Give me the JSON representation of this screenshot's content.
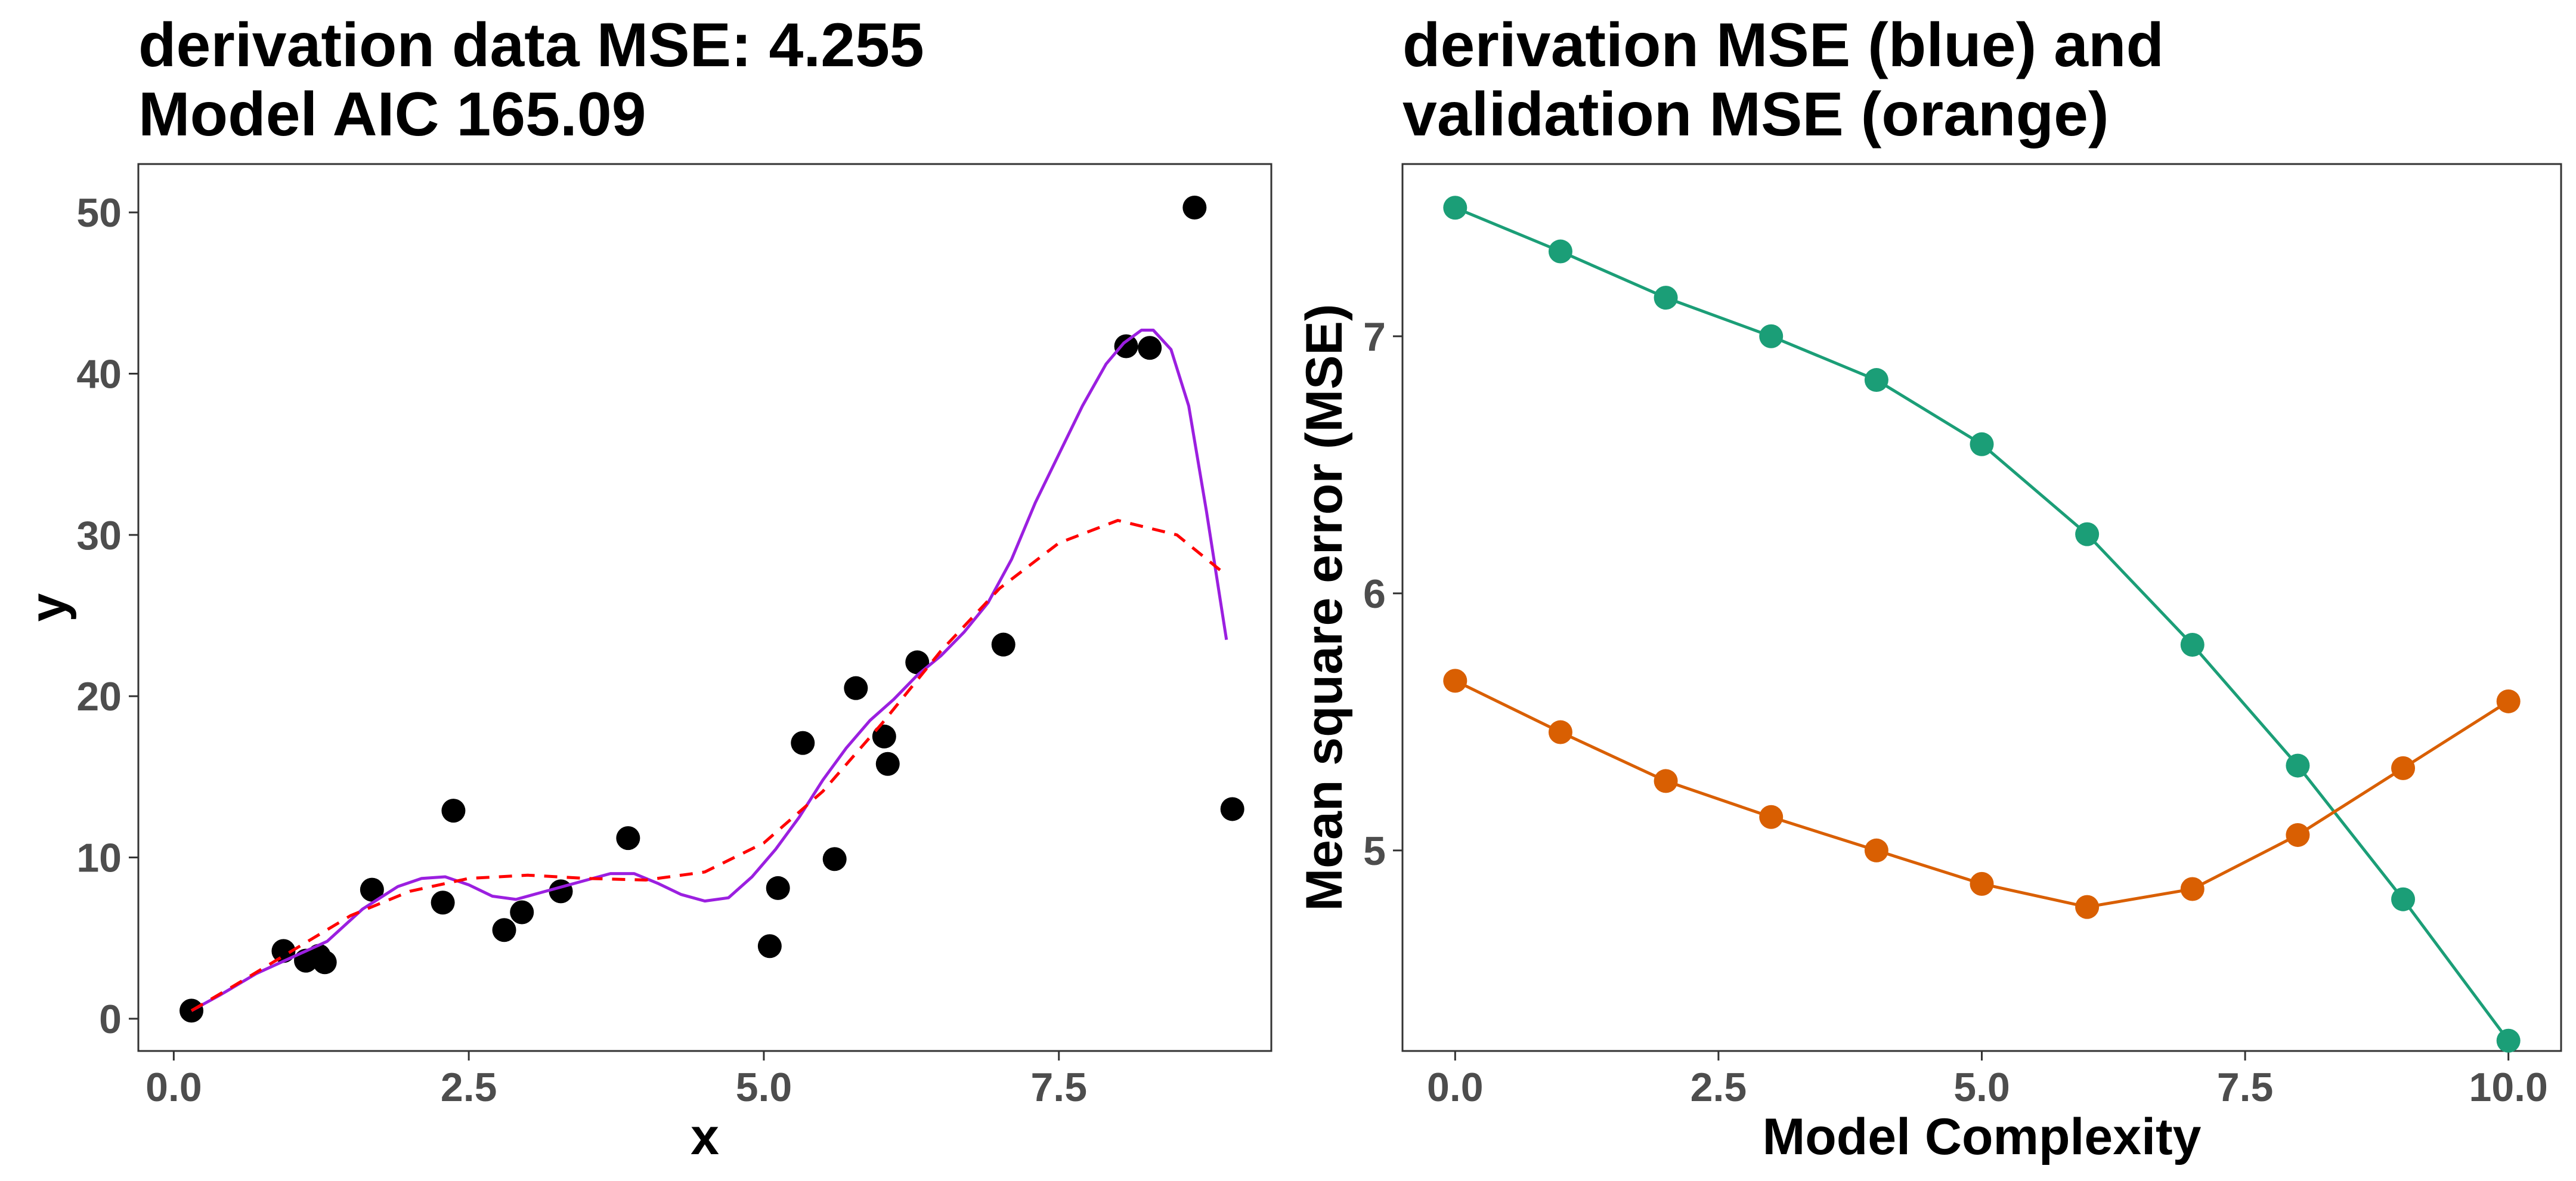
{
  "chart_data": [
    {
      "type": "scatter",
      "title_lines": [
        "derivation data MSE: 4.255",
        "Model AIC 165.09"
      ],
      "xlabel": "x",
      "ylabel": "y",
      "xlim": [
        -0.3,
        9.3
      ],
      "ylim": [
        -2,
        53
      ],
      "xticks": [
        0.0,
        2.5,
        5.0,
        7.5
      ],
      "xtick_labels": [
        "0.0",
        "2.5",
        "5.0",
        "7.5"
      ],
      "yticks": [
        0,
        10,
        20,
        30,
        40,
        50
      ],
      "ytick_labels": [
        "0",
        "10",
        "20",
        "30",
        "40",
        "50"
      ],
      "grid": false,
      "points": [
        {
          "x": 0.15,
          "y": 0.5
        },
        {
          "x": 0.93,
          "y": 4.2
        },
        {
          "x": 1.12,
          "y": 3.6
        },
        {
          "x": 1.23,
          "y": 3.9
        },
        {
          "x": 1.28,
          "y": 3.5
        },
        {
          "x": 1.68,
          "y": 8.0
        },
        {
          "x": 2.28,
          "y": 7.2
        },
        {
          "x": 2.37,
          "y": 12.9
        },
        {
          "x": 2.8,
          "y": 5.5
        },
        {
          "x": 2.95,
          "y": 6.6
        },
        {
          "x": 3.28,
          "y": 7.9
        },
        {
          "x": 3.85,
          "y": 11.2
        },
        {
          "x": 5.05,
          "y": 4.5
        },
        {
          "x": 5.12,
          "y": 8.1
        },
        {
          "x": 5.33,
          "y": 17.1
        },
        {
          "x": 5.6,
          "y": 9.9
        },
        {
          "x": 5.78,
          "y": 20.5
        },
        {
          "x": 6.02,
          "y": 17.5
        },
        {
          "x": 6.05,
          "y": 15.8
        },
        {
          "x": 6.3,
          "y": 22.1
        },
        {
          "x": 7.03,
          "y": 23.2
        },
        {
          "x": 8.07,
          "y": 41.7
        },
        {
          "x": 8.27,
          "y": 41.6
        },
        {
          "x": 8.65,
          "y": 50.3
        },
        {
          "x": 8.97,
          "y": 13.0
        }
      ],
      "point_color": "#000000",
      "fits": [
        {
          "style": "solid",
          "color": "#9b1fe0",
          "x": [
            0.15,
            0.4,
            0.7,
            1.0,
            1.3,
            1.6,
            1.9,
            2.1,
            2.3,
            2.5,
            2.7,
            2.9,
            3.1,
            3.3,
            3.5,
            3.7,
            3.9,
            4.1,
            4.3,
            4.5,
            4.7,
            4.9,
            5.1,
            5.3,
            5.5,
            5.7,
            5.9,
            6.1,
            6.3,
            6.5,
            6.7,
            6.9,
            7.1,
            7.3,
            7.5,
            7.7,
            7.9,
            8.05,
            8.2,
            8.3,
            8.45,
            8.6,
            8.75,
            8.92
          ],
          "y": [
            0.5,
            1.5,
            2.8,
            3.8,
            4.8,
            6.8,
            8.2,
            8.7,
            8.8,
            8.3,
            7.6,
            7.4,
            7.8,
            8.2,
            8.6,
            9.0,
            9.0,
            8.4,
            7.7,
            7.3,
            7.5,
            8.8,
            10.5,
            12.5,
            14.8,
            16.8,
            18.5,
            19.8,
            21.3,
            22.5,
            24.0,
            25.8,
            28.5,
            32.0,
            35.0,
            38.0,
            40.6,
            41.9,
            42.7,
            42.7,
            41.5,
            38.0,
            31.5,
            23.5
          ]
        },
        {
          "style": "dashed",
          "color": "#ff0000",
          "x": [
            0.15,
            0.5,
            1.0,
            1.5,
            2.0,
            2.5,
            3.0,
            3.5,
            4.0,
            4.5,
            5.0,
            5.5,
            6.0,
            6.5,
            7.0,
            7.5,
            8.0,
            8.5,
            8.92
          ],
          "y": [
            0.5,
            2.0,
            4.2,
            6.4,
            7.9,
            8.7,
            8.9,
            8.7,
            8.6,
            9.1,
            10.9,
            14.1,
            18.3,
            22.8,
            26.7,
            29.5,
            30.9,
            30.0,
            27.5
          ]
        }
      ]
    },
    {
      "type": "line",
      "title_lines": [
        "derivation MSE (blue) and",
        "validation MSE (orange)"
      ],
      "xlabel": "Model Complexity",
      "ylabel": "Mean square error (MSE)",
      "xlim": [
        -0.5,
        10.5
      ],
      "ylim": [
        4.22,
        7.67
      ],
      "xticks": [
        0.0,
        2.5,
        5.0,
        7.5,
        10.0
      ],
      "xtick_labels": [
        "0.0",
        "2.5",
        "5.0",
        "7.5",
        "10.0"
      ],
      "yticks": [
        5,
        6,
        7
      ],
      "ytick_labels": [
        "5",
        "6",
        "7"
      ],
      "grid": false,
      "x": [
        0,
        1,
        2,
        3,
        4,
        5,
        6,
        7,
        8,
        9,
        10
      ],
      "series": [
        {
          "color": "#1b9e77",
          "values": [
            7.5,
            7.33,
            7.15,
            7.0,
            6.83,
            6.58,
            6.23,
            5.8,
            5.33,
            4.81,
            4.26
          ]
        },
        {
          "color": "#d95f02",
          "values": [
            5.66,
            5.46,
            5.27,
            5.13,
            5.0,
            4.87,
            4.78,
            4.85,
            5.06,
            5.32,
            5.58
          ]
        }
      ]
    }
  ]
}
